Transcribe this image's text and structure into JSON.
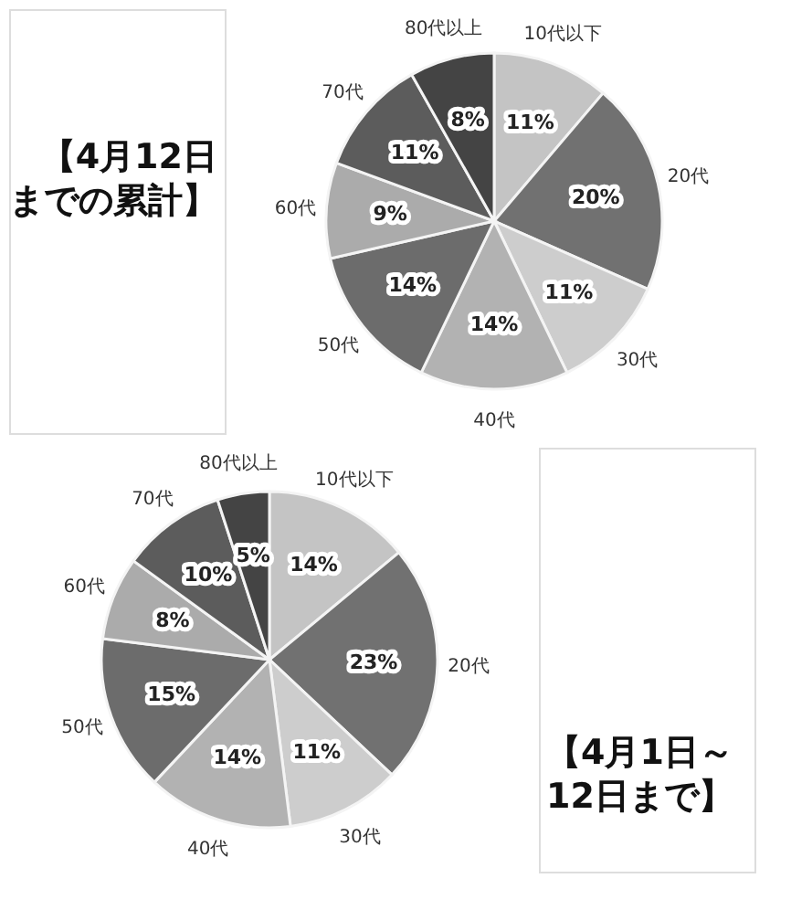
{
  "chart_data": [
    {
      "type": "pie",
      "title": "【4月12日までの累計】",
      "categories": [
        "10代以下",
        "20代",
        "30代",
        "40代",
        "50代",
        "60代",
        "70代",
        "80代以上"
      ],
      "values": [
        11,
        20,
        11,
        14,
        14,
        9,
        11,
        8
      ],
      "value_labels": [
        "11%",
        "20%",
        "11%",
        "14%",
        "14%",
        "9%",
        "11%",
        "8%"
      ],
      "colors": [
        "#c4c4c4",
        "#717171",
        "#cdcdcd",
        "#b2b2b2",
        "#6c6c6c",
        "#ababab",
        "#5c5c5c",
        "#444444"
      ]
    },
    {
      "type": "pie",
      "title": "【4月1日～12日まで】",
      "categories": [
        "10代以下",
        "20代",
        "30代",
        "40代",
        "50代",
        "60代",
        "70代",
        "80代以上"
      ],
      "values": [
        14,
        23,
        11,
        14,
        15,
        8,
        10,
        5
      ],
      "value_labels": [
        "14%",
        "23%",
        "11%",
        "14%",
        "15%",
        "8%",
        "10%",
        "5%"
      ],
      "colors": [
        "#c4c4c4",
        "#717171",
        "#cdcdcd",
        "#b2b2b2",
        "#6c6c6c",
        "#ababab",
        "#5c5c5c",
        "#444444"
      ]
    }
  ]
}
